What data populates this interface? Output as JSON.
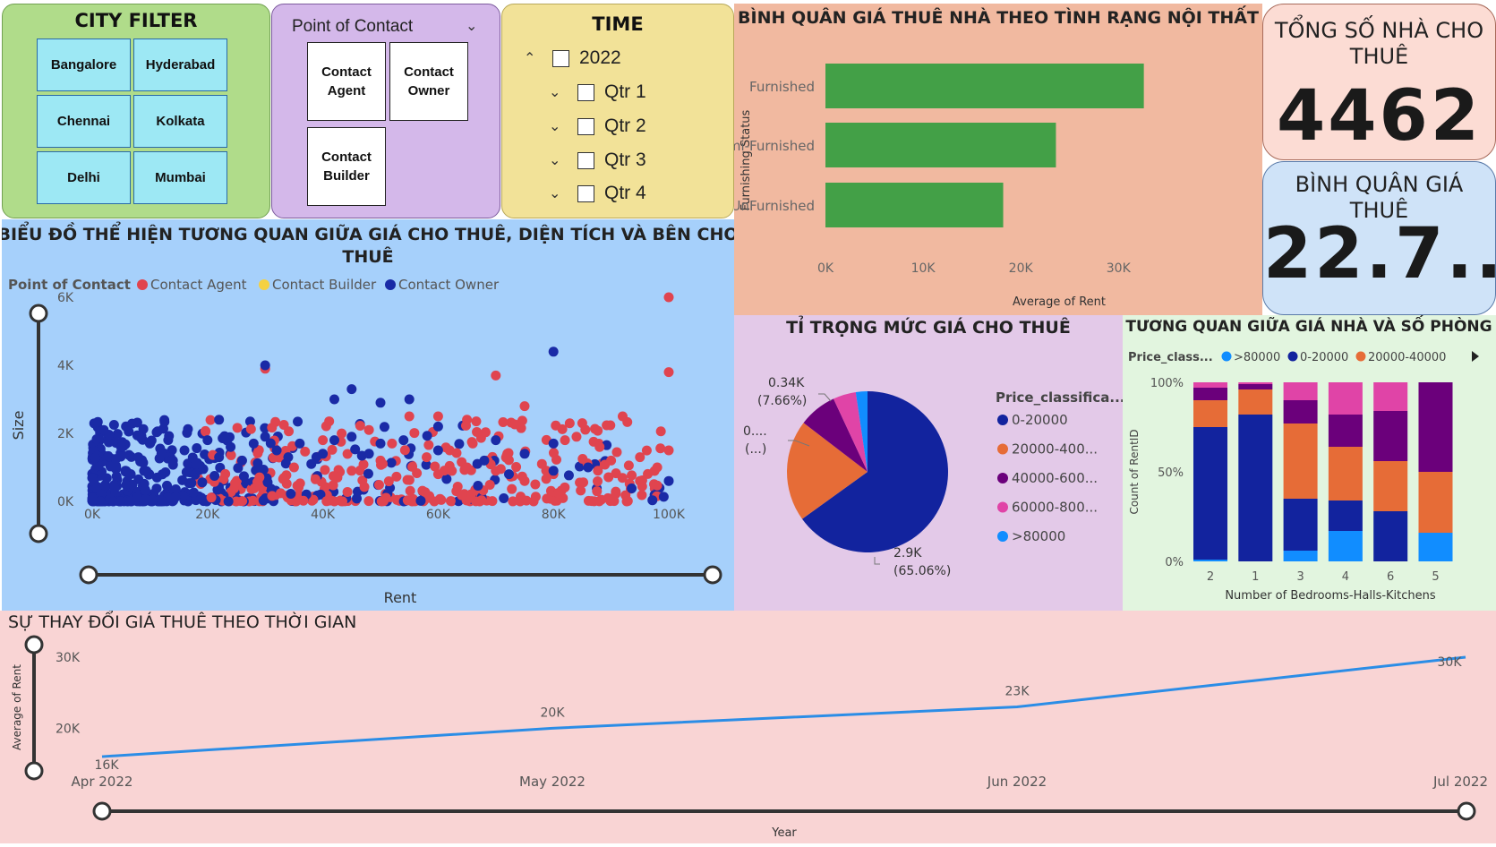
{
  "city_filter": {
    "title": "CITY FILTER",
    "cities": [
      "Bangalore",
      "Hyderabad",
      "Chennai",
      "Kolkata",
      "Delhi",
      "Mumbai"
    ]
  },
  "contact_filter": {
    "title": "Point of Contact",
    "options": [
      [
        "Contact",
        "Agent"
      ],
      [
        "Contact",
        "Owner"
      ],
      [
        "Contact",
        "Builder"
      ]
    ]
  },
  "time_filter": {
    "title": "TIME",
    "year": "2022",
    "quarters": [
      "Qtr 1",
      "Qtr 2",
      "Qtr 3",
      "Qtr 4"
    ]
  },
  "kpis": {
    "total_title_1": "TỔNG SỐ NHÀ CHO",
    "total_title_2": "THUÊ",
    "total_value": "4462",
    "avg_title": "BÌNH QUÂN GIÁ THUÊ",
    "avg_value": "22.7..."
  },
  "colors": {
    "agent": "#e0444f",
    "builder": "#f5d142",
    "owner": "#1a2aa6",
    "c0_20": "#12239e",
    "c20_40": "#e66c37",
    "c40_60": "#6b007b",
    "c60_80": "#e044a7",
    "c80": "#118dff",
    "bar": "#43a047",
    "line": "#2b8de6"
  },
  "furnishing_chart": {
    "type": "bar",
    "title": "BÌNH QUÂN GIÁ THUÊ NHÀ THEO TÌNH RẠNG NỘI THẤT",
    "categories": [
      "Furnished",
      "Semi-Furnished",
      "UnFurnished"
    ],
    "values": [
      32600,
      23600,
      18200
    ],
    "xlim": [
      0,
      33000
    ],
    "xticks": [
      0,
      10000,
      20000,
      30000
    ],
    "xtick_labels": [
      "0K",
      "10K",
      "20K",
      "30K"
    ],
    "xlabel": "Average of Rent",
    "ylabel": "Furnishing Status"
  },
  "scatter_chart": {
    "type": "scatter",
    "title_1": "BIỂU ĐỒ THỂ HIỆN TƯƠNG QUAN GIỮA GIÁ CHO THUÊ, DIỆN TÍCH VÀ BÊN CHO",
    "title_2": "THUÊ",
    "legend_title": "Point of Contact",
    "legend": [
      "Contact Agent",
      "Contact Builder",
      "Contact Owner"
    ],
    "xlabel": "Rent",
    "ylabel": "Size",
    "xlim": [
      0,
      100000
    ],
    "ylim": [
      0,
      6000
    ],
    "xtick_labels": [
      "0K",
      "20K",
      "40K",
      "60K",
      "80K",
      "100K"
    ],
    "ytick_labels": [
      "0K",
      "2K",
      "4K",
      "6K"
    ],
    "owner_points": [
      [
        2000,
        2100
      ],
      [
        5000,
        1600
      ],
      [
        8000,
        1300
      ],
      [
        10000,
        1700
      ],
      [
        12000,
        1400
      ],
      [
        14000,
        1200
      ],
      [
        16000,
        1500
      ],
      [
        18000,
        1100
      ],
      [
        20000,
        1800
      ],
      [
        22000,
        1300
      ],
      [
        22000,
        2400
      ],
      [
        24000,
        1600
      ],
      [
        26000,
        1200
      ],
      [
        28000,
        1700
      ],
      [
        30000,
        1900
      ],
      [
        30000,
        4000
      ],
      [
        32000,
        1500
      ],
      [
        34000,
        1300
      ],
      [
        36000,
        1700
      ],
      [
        38000,
        1100
      ],
      [
        40000,
        1400
      ],
      [
        42000,
        3000
      ],
      [
        42000,
        1800
      ],
      [
        45000,
        3300
      ],
      [
        45000,
        1900
      ],
      [
        48000,
        1400
      ],
      [
        50000,
        2900
      ],
      [
        50000,
        1700
      ],
      [
        54000,
        1800
      ],
      [
        55000,
        3000
      ],
      [
        60000,
        2200
      ],
      [
        60000,
        1500
      ],
      [
        68000,
        1200
      ],
      [
        70000,
        1800
      ],
      [
        75000,
        1400
      ],
      [
        80000,
        4400
      ],
      [
        80000,
        1700
      ],
      [
        80000,
        900
      ],
      [
        86000,
        1000
      ],
      [
        100000,
        600
      ]
    ],
    "agent_points": [
      [
        30000,
        3900
      ],
      [
        35000,
        1000
      ],
      [
        40000,
        1800
      ],
      [
        45000,
        900
      ],
      [
        48000,
        2100
      ],
      [
        50000,
        1200
      ],
      [
        52000,
        1700
      ],
      [
        55000,
        2500
      ],
      [
        58000,
        1300
      ],
      [
        60000,
        2500
      ],
      [
        60000,
        800
      ],
      [
        62000,
        1500
      ],
      [
        65000,
        1000
      ],
      [
        65000,
        2400
      ],
      [
        66000,
        1700
      ],
      [
        70000,
        3700
      ],
      [
        70000,
        900
      ],
      [
        72000,
        1400
      ],
      [
        75000,
        2800
      ],
      [
        75000,
        600
      ],
      [
        78000,
        1100
      ],
      [
        80000,
        800
      ],
      [
        82000,
        1800
      ],
      [
        84000,
        1900
      ],
      [
        85000,
        2300
      ],
      [
        88000,
        1600
      ],
      [
        90000,
        1200
      ],
      [
        92000,
        2500
      ],
      [
        95000,
        600
      ],
      [
        95000,
        1300
      ],
      [
        98000,
        1000
      ],
      [
        100000,
        3800
      ],
      [
        100000,
        1500
      ],
      [
        100000,
        6000
      ]
    ]
  },
  "pie_chart": {
    "type": "pie",
    "title": "TỈ TRỌNG MỨC GIÁ CHO THUÊ",
    "legend_title": "Price_classifica...",
    "categories": [
      "0-20000",
      "20000-400...",
      "40000-600...",
      "60000-800...",
      ">80000"
    ],
    "values": [
      65.06,
      20.34,
      7.66,
      4.6,
      2.34
    ],
    "labels": {
      "big_1": "2.9K",
      "big_2": "(65.06%)",
      "mid_1": "0.34K",
      "mid_2": "(7.66%)",
      "orange_1": "0....",
      "orange_2": "(...)"
    }
  },
  "stacked_chart": {
    "type": "bar",
    "title": "TƯƠNG QUAN GIỮA GIÁ NHÀ VÀ SỐ PHÒNG",
    "legend_title": "Price_class...",
    "legend": [
      ">80000",
      "0-20000",
      "20000-40000"
    ],
    "categories": [
      "2",
      "1",
      "3",
      "4",
      "6",
      "5"
    ],
    "series": [
      {
        "values": [
          1,
          0,
          6,
          17,
          0,
          16
        ]
      },
      {
        "values": [
          74,
          82,
          29,
          17,
          28,
          0
        ]
      },
      {
        "values": [
          15,
          14,
          42,
          30,
          28,
          34
        ]
      },
      {
        "values": [
          7,
          3,
          13,
          18,
          28,
          50
        ]
      },
      {
        "values": [
          3,
          1,
          10,
          18,
          16,
          0
        ]
      }
    ],
    "ytick_labels": [
      "0%",
      "50%",
      "100%"
    ],
    "xlabel": "Number of Bedrooms-Halls-Kitchens",
    "ylabel": "Count of RentID"
  },
  "line_chart": {
    "type": "line",
    "title": "SỰ THAY ĐỔI GIÁ THUÊ THEO THỜI GIAN",
    "categories": [
      "Apr 2022",
      "May 2022",
      "Jun 2022",
      "Jul 2022"
    ],
    "values": [
      16000,
      20000,
      23000,
      30000
    ],
    "point_labels": [
      "16K",
      "20K",
      "23K",
      "30K"
    ],
    "ylim": [
      15000,
      30500
    ],
    "ytick_labels": [
      "20K",
      "30K"
    ],
    "xlabel": "Year",
    "ylabel": "Average of Rent"
  }
}
